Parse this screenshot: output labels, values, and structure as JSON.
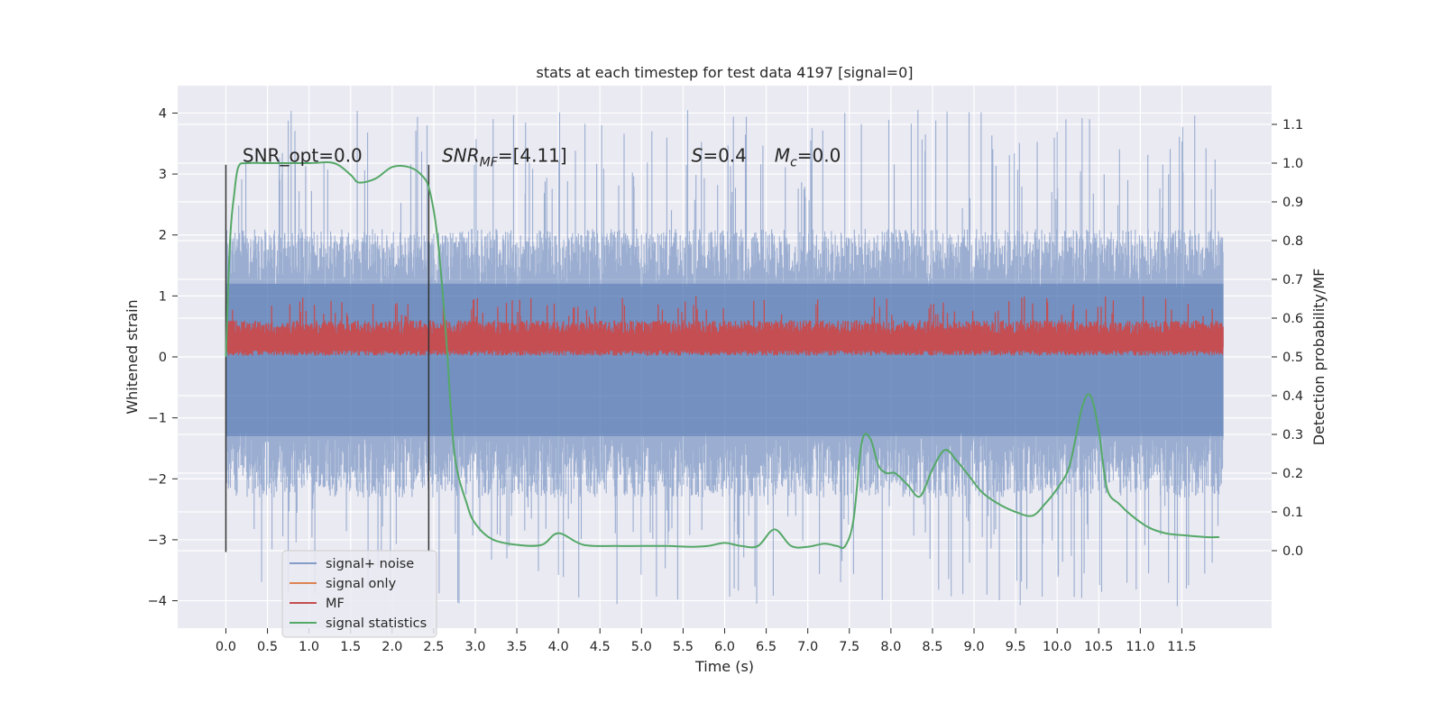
{
  "chart_data": {
    "type": "line",
    "title": "stats at each timestep for test data 4197 [signal=0]",
    "xlabel": "Time (s)",
    "ylabel": "Whitened strain",
    "y2label": "Detection probability/MF",
    "xlim": [
      -0.58,
      12.58
    ],
    "ylim": [
      -4.45,
      4.45
    ],
    "y2lim": [
      -0.2,
      1.2
    ],
    "x_ticks": [
      0.0,
      0.5,
      1.0,
      1.5,
      2.0,
      2.5,
      3.0,
      3.5,
      4.0,
      4.5,
      5.0,
      5.5,
      6.0,
      6.5,
      7.0,
      7.5,
      8.0,
      8.5,
      9.0,
      9.5,
      10.0,
      10.5,
      11.0,
      11.5
    ],
    "x_tick_labels": [
      "0.0",
      "0.5",
      "1.0",
      "1.5",
      "2.0",
      "2.5",
      "3.0",
      "3.5",
      "4.0",
      "4.5",
      "5.0",
      "5.5",
      "6.0",
      "6.5",
      "7.0",
      "7.5",
      "8.0",
      "8.5",
      "9.0",
      "9.5",
      "10.0",
      "10.5",
      "11.0",
      "11.5"
    ],
    "y_ticks": [
      -4,
      -3,
      -2,
      -1,
      0,
      1,
      2,
      3,
      4
    ],
    "y_tick_labels": [
      "−4",
      "−3",
      "−2",
      "−1",
      "0",
      "1",
      "2",
      "3",
      "4"
    ],
    "y2_ticks": [
      0.0,
      0.1,
      0.2,
      0.3,
      0.4,
      0.5,
      0.6,
      0.7,
      0.8,
      0.9,
      1.0,
      1.1
    ],
    "y2_tick_labels": [
      "0.0",
      "0.1",
      "0.2",
      "0.3",
      "0.4",
      "0.5",
      "0.6",
      "0.7",
      "0.8",
      "0.9",
      "1.0",
      "1.1"
    ],
    "grid": true,
    "legend_position": "lower-left",
    "background_color": "#eaeaf2",
    "annotations": [
      {
        "text": "SNR_opt=0.0",
        "x": 0.2,
        "y": 3.2
      },
      {
        "text": "SNR_MF=[4.11]",
        "x": 2.6,
        "y": 3.2
      },
      {
        "text": "S=0.4",
        "x": 5.6,
        "y": 3.2
      },
      {
        "text": "M_c=0.0",
        "x": 6.6,
        "y": 3.2
      }
    ],
    "vertical_lines": [
      {
        "x": 0.0,
        "ymin": -3.2,
        "ymax": 3.15
      },
      {
        "x": 2.44,
        "ymin": -3.2,
        "ymax": 3.15
      }
    ],
    "series": [
      {
        "name": "signal+ noise",
        "axis": "left",
        "color": "#4c72b0",
        "opacity": 0.5,
        "x_start": 0.0,
        "x_end": 12.0,
        "envelope_upper_typical": 2.0,
        "envelope_lower_typical": -2.2,
        "peak_upper": 4.05,
        "peak_lower": -4.1
      },
      {
        "name": "signal only",
        "axis": "left",
        "color": "#dd8452",
        "x": [
          0.0,
          12.0
        ],
        "values": [
          0.0,
          0.0
        ]
      },
      {
        "name": "MF",
        "axis": "left",
        "color": "#c44e52",
        "x_start": 0.0,
        "x_end": 12.0,
        "envelope_upper_typical": 0.6,
        "envelope_lower_typical": 0.02,
        "peak_upper": 1.0
      },
      {
        "name": "signal statistics",
        "axis": "right",
        "color": "#55a868",
        "x": [
          0.0,
          0.05,
          0.1,
          0.15,
          0.25,
          0.5,
          1.0,
          1.3,
          1.5,
          1.6,
          1.8,
          2.0,
          2.2,
          2.35,
          2.45,
          2.55,
          2.65,
          2.75,
          2.9,
          3.0,
          3.2,
          3.5,
          3.8,
          4.0,
          4.3,
          4.7,
          5.0,
          5.3,
          5.6,
          5.8,
          6.0,
          6.2,
          6.4,
          6.6,
          6.8,
          7.0,
          7.2,
          7.35,
          7.45,
          7.55,
          7.65,
          7.75,
          7.85,
          7.95,
          8.05,
          8.2,
          8.35,
          8.5,
          8.65,
          8.8,
          8.95,
          9.1,
          9.3,
          9.5,
          9.7,
          9.85,
          10.0,
          10.15,
          10.3,
          10.4,
          10.5,
          10.6,
          10.75,
          10.9,
          11.1,
          11.3,
          11.5,
          11.8,
          11.95
        ],
        "values": [
          0.5,
          0.8,
          0.92,
          0.99,
          1.0,
          1.0,
          1.0,
          1.0,
          0.97,
          0.95,
          0.96,
          0.99,
          0.99,
          0.97,
          0.93,
          0.8,
          0.55,
          0.25,
          0.12,
          0.07,
          0.03,
          0.015,
          0.015,
          0.045,
          0.015,
          0.012,
          0.012,
          0.012,
          0.01,
          0.012,
          0.02,
          0.012,
          0.012,
          0.055,
          0.012,
          0.01,
          0.018,
          0.012,
          0.012,
          0.08,
          0.28,
          0.29,
          0.22,
          0.2,
          0.2,
          0.17,
          0.14,
          0.21,
          0.26,
          0.23,
          0.19,
          0.15,
          0.12,
          0.1,
          0.09,
          0.12,
          0.16,
          0.22,
          0.37,
          0.4,
          0.31,
          0.16,
          0.12,
          0.09,
          0.06,
          0.045,
          0.04,
          0.035,
          0.035
        ]
      }
    ]
  }
}
